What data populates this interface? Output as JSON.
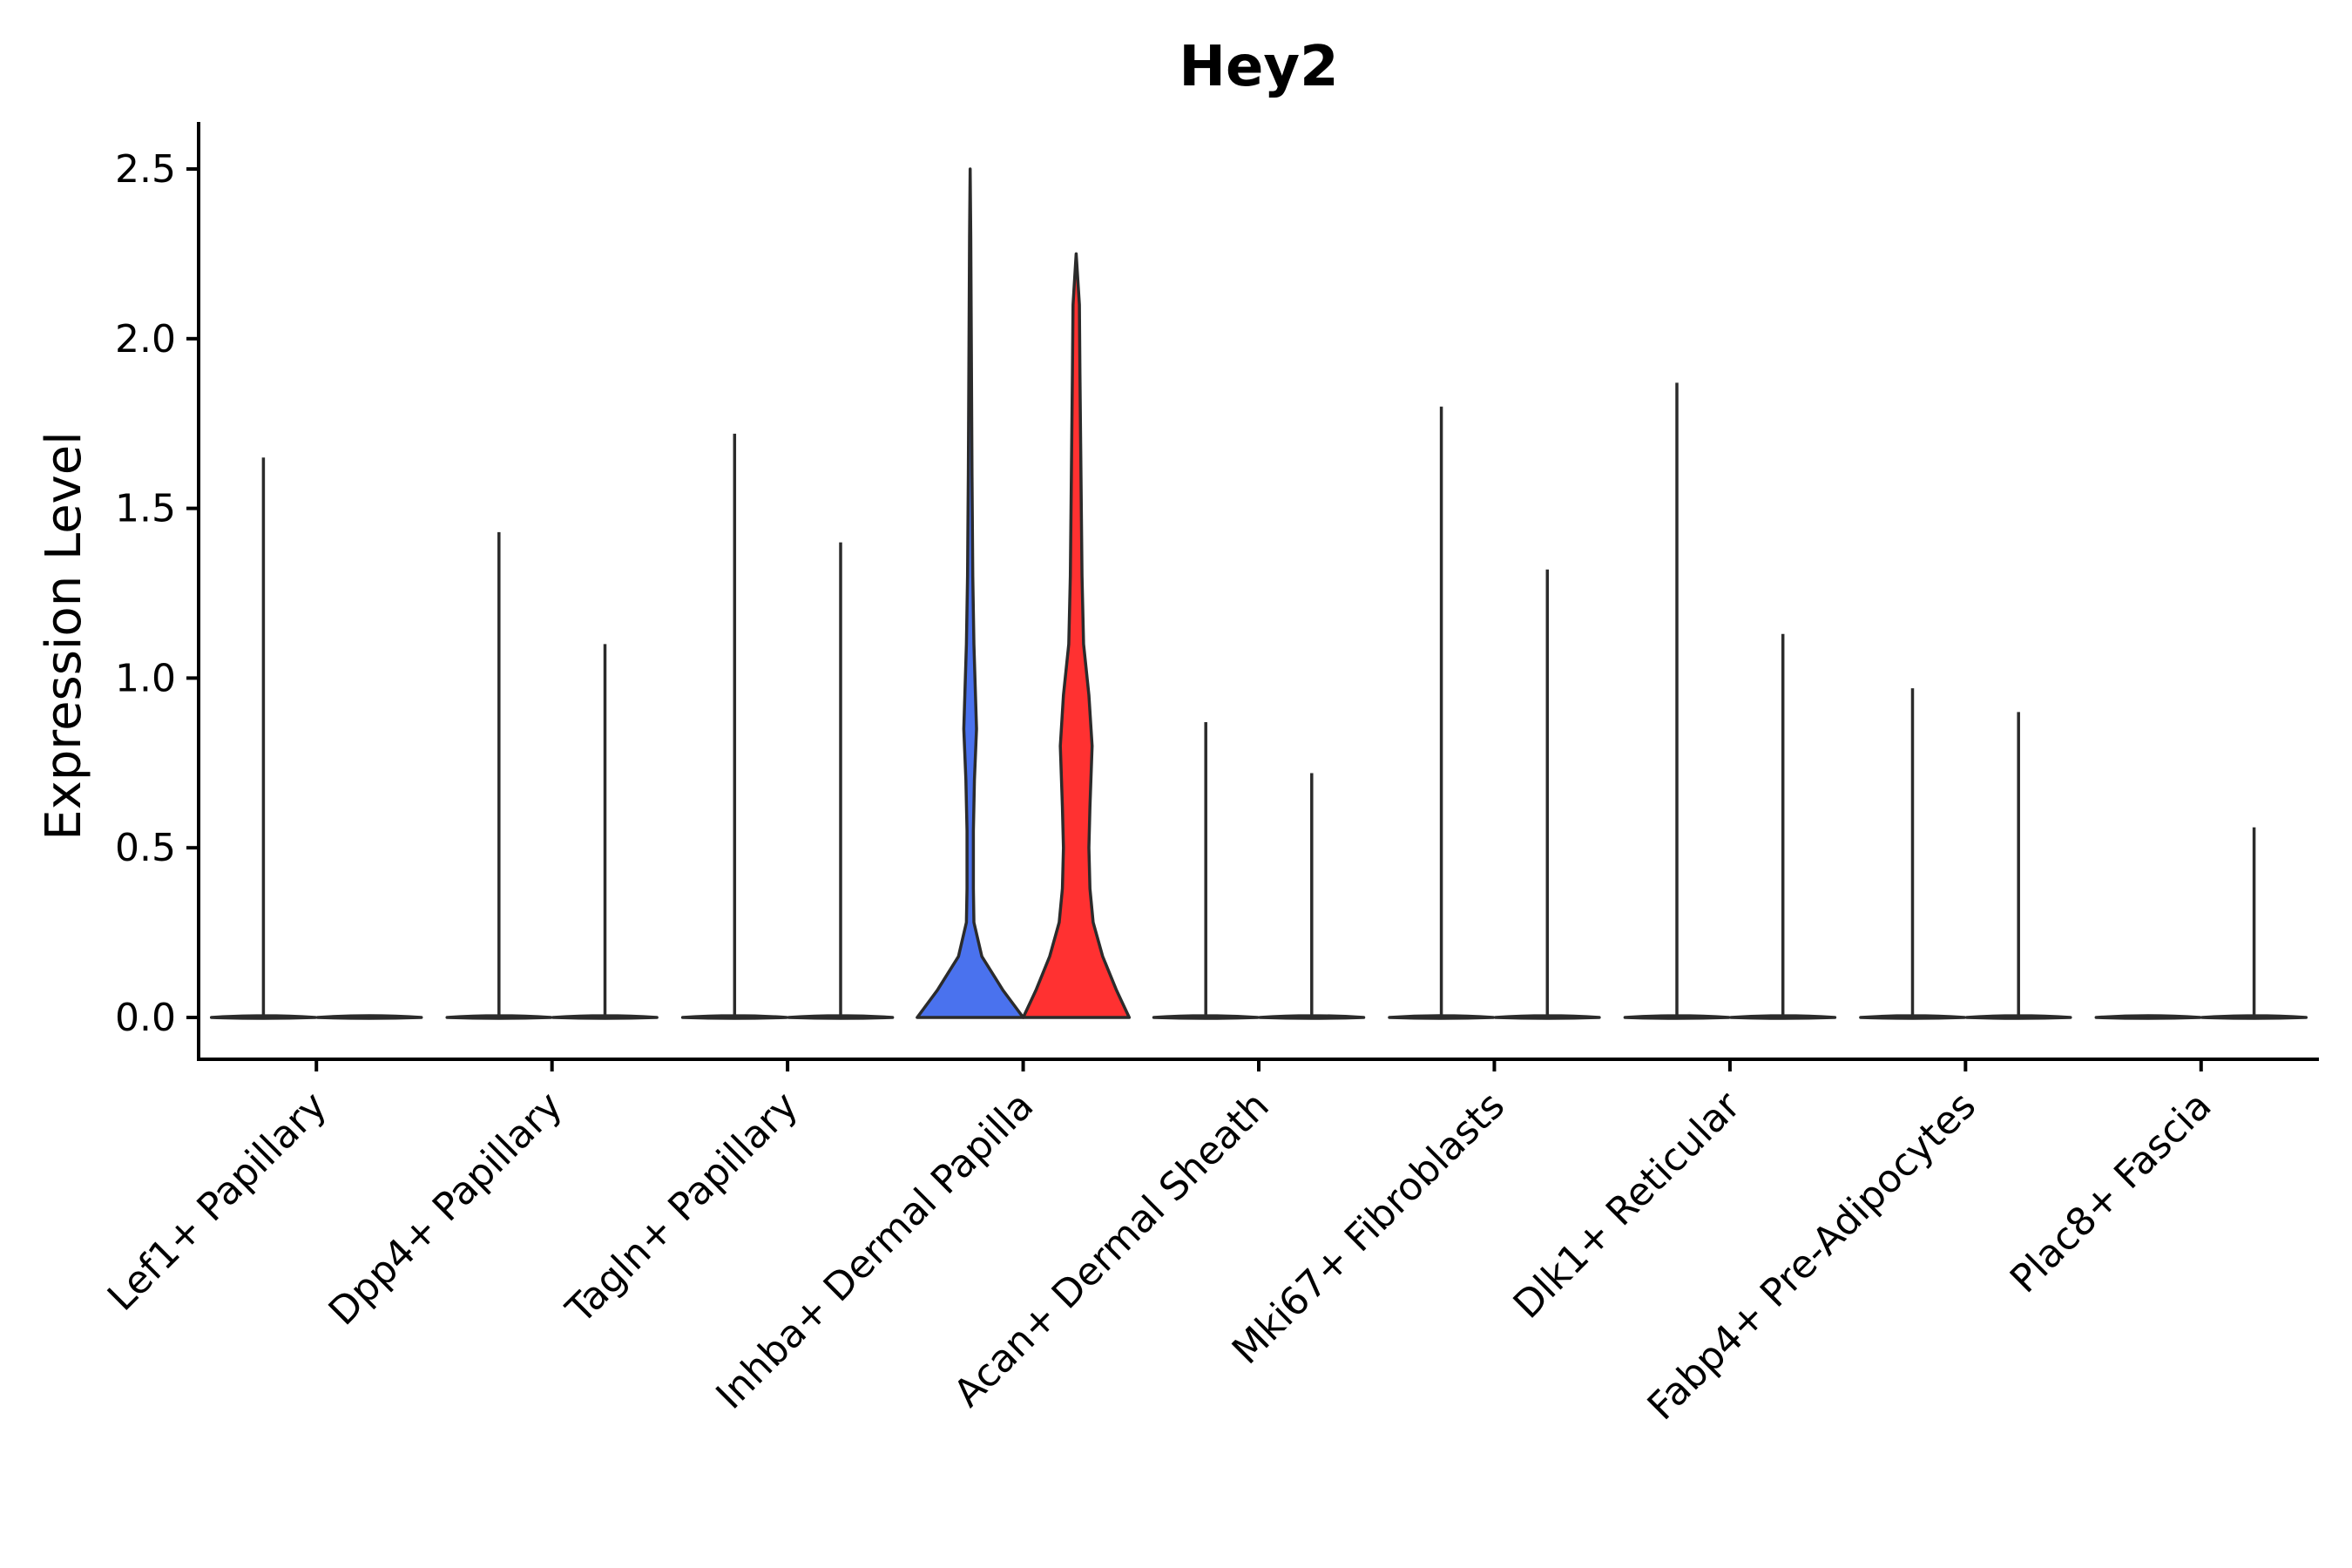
{
  "chart_data": {
    "type": "violin",
    "title": "Hey2",
    "xlabel": "",
    "ylabel": "Expression Level",
    "ylim": [
      -0.125,
      2.63
    ],
    "yticks": [
      0.0,
      0.5,
      1.0,
      1.5,
      2.0,
      2.5
    ],
    "ytick_labels": [
      "0.0",
      "0.5",
      "1.0",
      "1.5",
      "2.0",
      "2.5"
    ],
    "groups": [
      {
        "label": "Lef1+ Papillary",
        "series": [
          {
            "name": "group1",
            "max": 1.65,
            "shape": "line",
            "color": "#ffffff"
          },
          {
            "name": "group2",
            "max": 0.0,
            "shape": "line",
            "color": "#ffffff"
          }
        ]
      },
      {
        "label": "Dpp4+ Papillary",
        "series": [
          {
            "name": "group1",
            "max": 1.43,
            "shape": "line",
            "color": "#ffffff"
          },
          {
            "name": "group2",
            "max": 1.1,
            "shape": "line",
            "color": "#ffffff"
          }
        ]
      },
      {
        "label": "Tagln+ Papillary",
        "series": [
          {
            "name": "group1",
            "max": 1.72,
            "shape": "line",
            "color": "#ffffff"
          },
          {
            "name": "group2",
            "max": 1.4,
            "shape": "line",
            "color": "#ffffff"
          }
        ]
      },
      {
        "label": "Inhba+ Dermal Papilla",
        "series": [
          {
            "name": "group1",
            "max": 2.5,
            "shape": "violin",
            "color": "#4a72ee"
          },
          {
            "name": "group2",
            "max": 2.25,
            "shape": "violin",
            "color": "#ff3131"
          }
        ]
      },
      {
        "label": "Acan+ Dermal Sheath",
        "series": [
          {
            "name": "group1",
            "max": 0.87,
            "shape": "line",
            "color": "#ffffff"
          },
          {
            "name": "group2",
            "max": 0.72,
            "shape": "line",
            "color": "#ffffff"
          }
        ]
      },
      {
        "label": "Mki67+ Fibroblasts",
        "series": [
          {
            "name": "group1",
            "max": 1.8,
            "shape": "line",
            "color": "#ffffff"
          },
          {
            "name": "group2",
            "max": 1.32,
            "shape": "line",
            "color": "#ffffff"
          }
        ]
      },
      {
        "label": "Dlk1+ Reticular",
        "series": [
          {
            "name": "group1",
            "max": 1.87,
            "shape": "line",
            "color": "#ffffff"
          },
          {
            "name": "group2",
            "max": 1.13,
            "shape": "line",
            "color": "#ffffff"
          }
        ]
      },
      {
        "label": "Fabp4+ Pre-Adipocytes",
        "series": [
          {
            "name": "group1",
            "max": 0.97,
            "shape": "line",
            "color": "#ffffff"
          },
          {
            "name": "group2",
            "max": 0.9,
            "shape": "line",
            "color": "#ffffff"
          }
        ]
      },
      {
        "label": "Plac8+ Fascia",
        "series": [
          {
            "name": "group1",
            "max": 0.0,
            "shape": "line",
            "color": "#ffffff"
          },
          {
            "name": "group2",
            "max": 0.56,
            "shape": "line",
            "color": "#ffffff"
          }
        ]
      }
    ],
    "density_profiles": {
      "Inhba+ Dermal Papilla|group1": [
        [
          0.0,
          1.0
        ],
        [
          0.08,
          0.62
        ],
        [
          0.18,
          0.22
        ],
        [
          0.28,
          0.07
        ],
        [
          0.38,
          0.06
        ],
        [
          0.55,
          0.06
        ],
        [
          0.7,
          0.08
        ],
        [
          0.85,
          0.12
        ],
        [
          0.95,
          0.1
        ],
        [
          1.1,
          0.07
        ],
        [
          1.3,
          0.05
        ],
        [
          1.6,
          0.035
        ],
        [
          2.0,
          0.022
        ],
        [
          2.3,
          0.012
        ],
        [
          2.5,
          0.0
        ]
      ],
      "Inhba+ Dermal Papilla|group2": [
        [
          0.0,
          1.0
        ],
        [
          0.08,
          0.76
        ],
        [
          0.18,
          0.5
        ],
        [
          0.28,
          0.32
        ],
        [
          0.38,
          0.26
        ],
        [
          0.5,
          0.24
        ],
        [
          0.62,
          0.26
        ],
        [
          0.8,
          0.3
        ],
        [
          0.95,
          0.24
        ],
        [
          1.1,
          0.14
        ],
        [
          1.3,
          0.11
        ],
        [
          1.6,
          0.09
        ],
        [
          1.9,
          0.07
        ],
        [
          2.1,
          0.06
        ],
        [
          2.25,
          0.0
        ]
      ]
    }
  }
}
